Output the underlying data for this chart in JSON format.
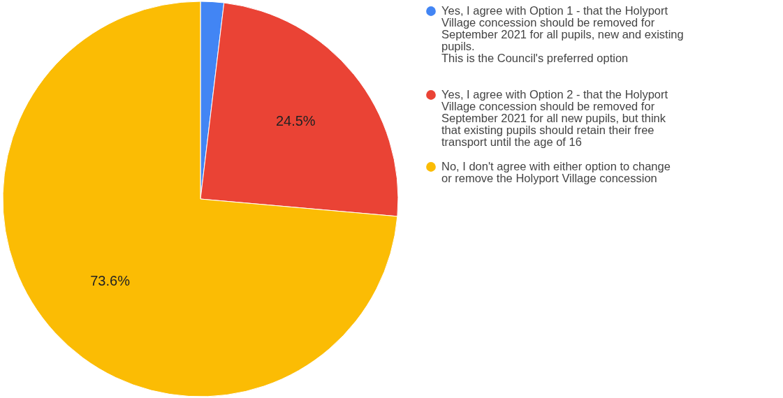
{
  "chart_data": {
    "type": "pie",
    "categories": [
      "Yes, I agree with Option 1 - that the Holyport Village concession should be removed for September 2021 for all pupils, new and existing pupils.\n\nThis is the Council's preferred option",
      "Yes, I agree with Option 2 - that the Holyport Village concession should be removed for September 2021 for all new pupils, but think that existing pupils should retain their free transport until the age of 16",
      "No, I don't agree with either option to change or remove the Holyport Village concession"
    ],
    "values": [
      1.9,
      24.5,
      73.6
    ],
    "colors": [
      "#4285f4",
      "#ea4335",
      "#fbbc04"
    ],
    "value_labels": [
      null,
      "24.5%",
      "73.6%"
    ],
    "legend": "right"
  }
}
